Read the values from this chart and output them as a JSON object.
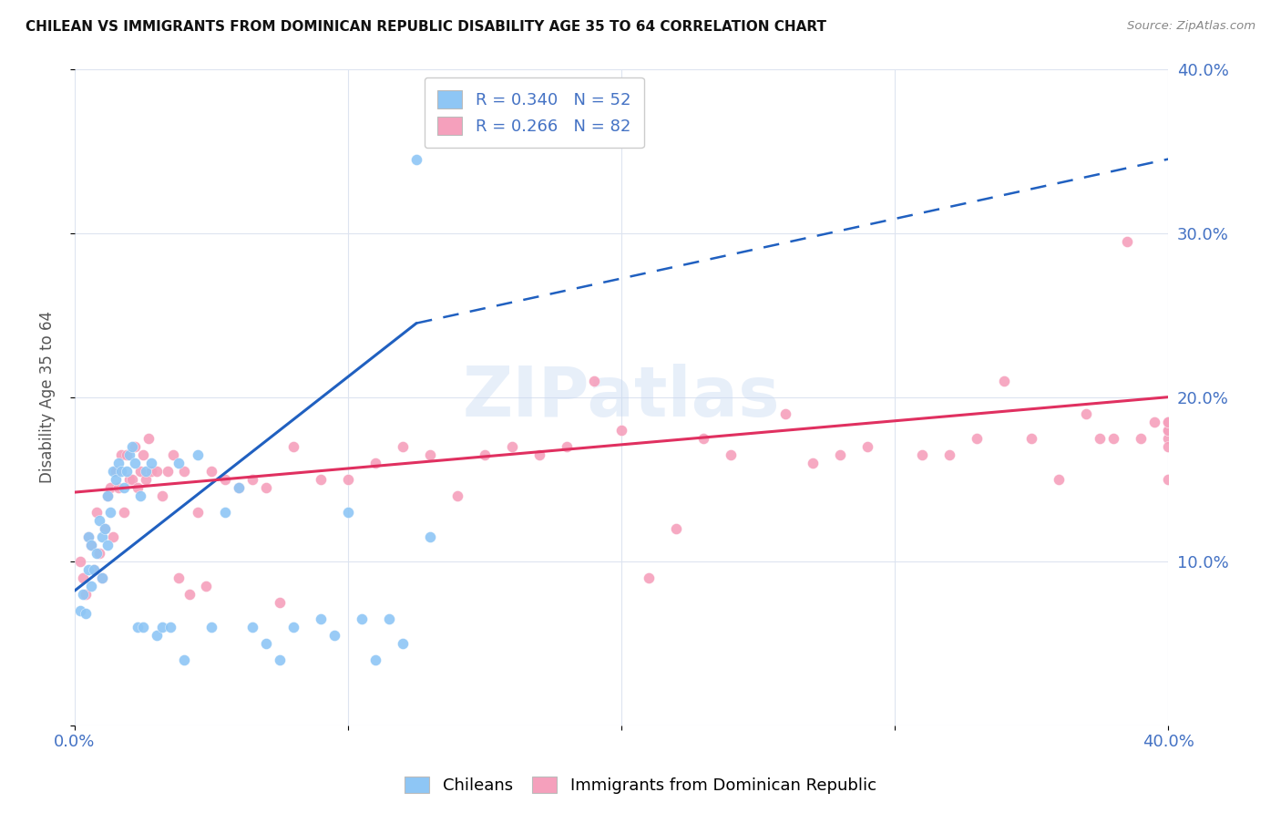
{
  "title": "CHILEAN VS IMMIGRANTS FROM DOMINICAN REPUBLIC DISABILITY AGE 35 TO 64 CORRELATION CHART",
  "source": "Source: ZipAtlas.com",
  "ylabel": "Disability Age 35 to 64",
  "xlim": [
    0.0,
    0.4
  ],
  "ylim": [
    0.0,
    0.4
  ],
  "color_chilean": "#8ec6f5",
  "color_dominican": "#f5a0bc",
  "color_line_chilean": "#2060c0",
  "color_line_dominican": "#e03060",
  "background_color": "#ffffff",
  "grid_color": "#dde4f0",
  "watermark": "ZIPatlas",
  "chilean_x": [
    0.002,
    0.003,
    0.004,
    0.005,
    0.005,
    0.006,
    0.006,
    0.007,
    0.008,
    0.009,
    0.01,
    0.01,
    0.011,
    0.012,
    0.012,
    0.013,
    0.014,
    0.015,
    0.016,
    0.017,
    0.018,
    0.019,
    0.02,
    0.021,
    0.022,
    0.023,
    0.024,
    0.025,
    0.026,
    0.028,
    0.03,
    0.032,
    0.035,
    0.038,
    0.04,
    0.045,
    0.05,
    0.055,
    0.06,
    0.065,
    0.07,
    0.075,
    0.08,
    0.09,
    0.095,
    0.1,
    0.105,
    0.11,
    0.115,
    0.12,
    0.125,
    0.13
  ],
  "chilean_y": [
    0.07,
    0.08,
    0.068,
    0.095,
    0.115,
    0.085,
    0.11,
    0.095,
    0.105,
    0.125,
    0.09,
    0.115,
    0.12,
    0.11,
    0.14,
    0.13,
    0.155,
    0.15,
    0.16,
    0.155,
    0.145,
    0.155,
    0.165,
    0.17,
    0.16,
    0.06,
    0.14,
    0.06,
    0.155,
    0.16,
    0.055,
    0.06,
    0.06,
    0.16,
    0.04,
    0.165,
    0.06,
    0.13,
    0.145,
    0.06,
    0.05,
    0.04,
    0.06,
    0.065,
    0.055,
    0.13,
    0.065,
    0.04,
    0.065,
    0.05,
    0.345,
    0.115
  ],
  "dominican_x": [
    0.002,
    0.003,
    0.004,
    0.005,
    0.006,
    0.007,
    0.008,
    0.009,
    0.01,
    0.011,
    0.012,
    0.013,
    0.014,
    0.015,
    0.016,
    0.017,
    0.018,
    0.019,
    0.02,
    0.021,
    0.022,
    0.023,
    0.024,
    0.025,
    0.026,
    0.027,
    0.028,
    0.03,
    0.032,
    0.034,
    0.036,
    0.038,
    0.04,
    0.042,
    0.045,
    0.048,
    0.05,
    0.055,
    0.06,
    0.065,
    0.07,
    0.075,
    0.08,
    0.09,
    0.1,
    0.11,
    0.12,
    0.13,
    0.14,
    0.15,
    0.16,
    0.17,
    0.18,
    0.19,
    0.2,
    0.21,
    0.22,
    0.23,
    0.24,
    0.26,
    0.27,
    0.28,
    0.29,
    0.31,
    0.32,
    0.33,
    0.34,
    0.35,
    0.36,
    0.37,
    0.375,
    0.38,
    0.385,
    0.39,
    0.395,
    0.4,
    0.4,
    0.4,
    0.4,
    0.4,
    0.4,
    0.4
  ],
  "dominican_y": [
    0.1,
    0.09,
    0.08,
    0.115,
    0.11,
    0.095,
    0.13,
    0.105,
    0.09,
    0.12,
    0.14,
    0.145,
    0.115,
    0.155,
    0.145,
    0.165,
    0.13,
    0.165,
    0.15,
    0.15,
    0.17,
    0.145,
    0.155,
    0.165,
    0.15,
    0.175,
    0.155,
    0.155,
    0.14,
    0.155,
    0.165,
    0.09,
    0.155,
    0.08,
    0.13,
    0.085,
    0.155,
    0.15,
    0.145,
    0.15,
    0.145,
    0.075,
    0.17,
    0.15,
    0.15,
    0.16,
    0.17,
    0.165,
    0.14,
    0.165,
    0.17,
    0.165,
    0.17,
    0.21,
    0.18,
    0.09,
    0.12,
    0.175,
    0.165,
    0.19,
    0.16,
    0.165,
    0.17,
    0.165,
    0.165,
    0.175,
    0.21,
    0.175,
    0.15,
    0.19,
    0.175,
    0.175,
    0.295,
    0.175,
    0.185,
    0.175,
    0.18,
    0.18,
    0.17,
    0.185,
    0.15,
    0.185
  ],
  "line_chilean_x0": 0.0,
  "line_chilean_y0": 0.082,
  "line_chilean_x1": 0.125,
  "line_chilean_y1": 0.245,
  "line_chilean_dash_x0": 0.125,
  "line_chilean_dash_y0": 0.245,
  "line_chilean_dash_x1": 0.4,
  "line_chilean_dash_y1": 0.345,
  "line_dominican_x0": 0.0,
  "line_dominican_y0": 0.142,
  "line_dominican_x1": 0.4,
  "line_dominican_y1": 0.2
}
